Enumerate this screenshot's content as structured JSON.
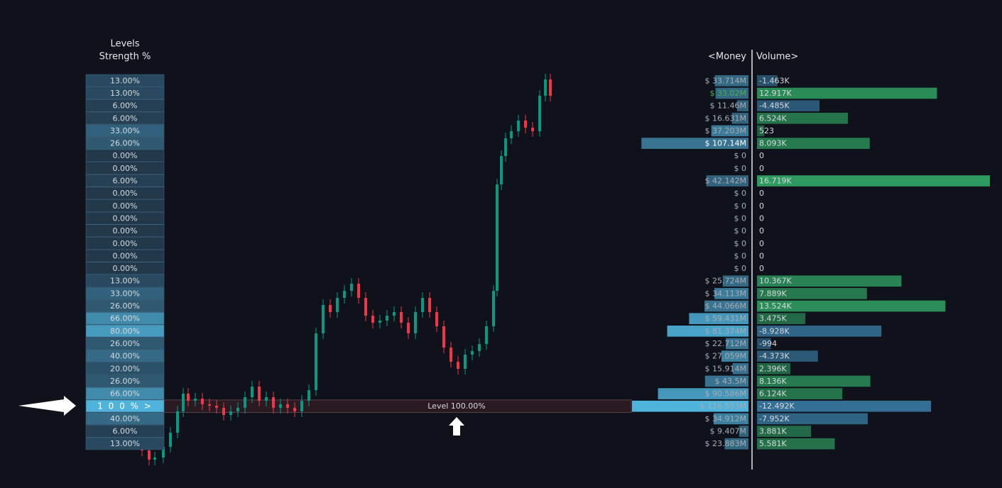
{
  "header": {
    "levels_title": "Levels",
    "strength_title": "Strength %",
    "money_title": "<Money",
    "volume_title": "Volume>"
  },
  "level": {
    "value": 100,
    "label": "Level 100.00%"
  },
  "colors": {
    "cell_low": "#22394c",
    "cell_high": "#4fb3dc",
    "positive": "#2e9a5f",
    "negative": "#3a7ca5",
    "money_text": "#a9adb4"
  },
  "rows": [
    {
      "strength": {
        "value": 13,
        "label": "13.00%"
      },
      "money": {
        "value": 33714000,
        "label": "$ 33.714M"
      },
      "volume": {
        "value": -1463,
        "label": "-1.463K"
      }
    },
    {
      "strength": {
        "value": 13,
        "label": "13.00%"
      },
      "money": {
        "value": 33020000,
        "label": "$ 33.02M"
      },
      "money_text_color": "#4caf50",
      "volume": {
        "value": 12917,
        "label": "12.917K"
      }
    },
    {
      "strength": {
        "value": 6,
        "label": "6.00%"
      },
      "money": {
        "value": 11460000,
        "label": "$ 11.46M"
      },
      "volume": {
        "value": -4485,
        "label": "-4.485K"
      }
    },
    {
      "strength": {
        "value": 6,
        "label": "6.00%"
      },
      "money": {
        "value": 16631000,
        "label": "$ 16.631M"
      },
      "volume": {
        "value": 6524,
        "label": "6.524K"
      }
    },
    {
      "strength": {
        "value": 33,
        "label": "33.00%"
      },
      "money": {
        "value": 37203000,
        "label": "$ 37.203M"
      },
      "volume": {
        "value": 523,
        "label": "523"
      }
    },
    {
      "strength": {
        "value": 26,
        "label": "26.00%"
      },
      "money": {
        "value": 107140000,
        "label": "$ 107.14M"
      },
      "money_text_color": "#ffffff",
      "volume": {
        "value": 8093,
        "label": "8.093K"
      }
    },
    {
      "strength": {
        "value": 0,
        "label": "0.00%"
      },
      "money": {
        "value": 0,
        "label": "$ 0"
      },
      "volume": {
        "value": 0,
        "label": "0"
      }
    },
    {
      "strength": {
        "value": 0,
        "label": "0.00%"
      },
      "money": {
        "value": 0,
        "label": "$ 0"
      },
      "volume": {
        "value": 0,
        "label": "0"
      }
    },
    {
      "strength": {
        "value": 6,
        "label": "6.00%"
      },
      "money": {
        "value": 42142000,
        "label": "$ 42.142M"
      },
      "volume": {
        "value": 16719,
        "label": "16.719K"
      }
    },
    {
      "strength": {
        "value": 0,
        "label": "0.00%"
      },
      "money": {
        "value": 0,
        "label": "$ 0"
      },
      "volume": {
        "value": 0,
        "label": "0"
      }
    },
    {
      "strength": {
        "value": 0,
        "label": "0.00%"
      },
      "money": {
        "value": 0,
        "label": "$ 0"
      },
      "volume": {
        "value": 0,
        "label": "0"
      }
    },
    {
      "strength": {
        "value": 0,
        "label": "0.00%"
      },
      "money": {
        "value": 0,
        "label": "$ 0"
      },
      "volume": {
        "value": 0,
        "label": "0"
      }
    },
    {
      "strength": {
        "value": 0,
        "label": "0.00%"
      },
      "money": {
        "value": 0,
        "label": "$ 0"
      },
      "volume": {
        "value": 0,
        "label": "0"
      }
    },
    {
      "strength": {
        "value": 0,
        "label": "0.00%"
      },
      "money": {
        "value": 0,
        "label": "$ 0"
      },
      "volume": {
        "value": 0,
        "label": "0"
      }
    },
    {
      "strength": {
        "value": 0,
        "label": "0.00%"
      },
      "money": {
        "value": 0,
        "label": "$ 0"
      },
      "volume": {
        "value": 0,
        "label": "0"
      }
    },
    {
      "strength": {
        "value": 0,
        "label": "0.00%"
      },
      "money": {
        "value": 0,
        "label": "$ 0"
      },
      "volume": {
        "value": 0,
        "label": "0"
      }
    },
    {
      "strength": {
        "value": 13,
        "label": "13.00%"
      },
      "money": {
        "value": 25724000,
        "label": "$ 25.724M"
      },
      "volume": {
        "value": 10367,
        "label": "10.367K"
      }
    },
    {
      "strength": {
        "value": 33,
        "label": "33.00%"
      },
      "money": {
        "value": 34113000,
        "label": "$ 34.113M"
      },
      "volume": {
        "value": 7889,
        "label": "7.889K"
      }
    },
    {
      "strength": {
        "value": 26,
        "label": "26.00%"
      },
      "money": {
        "value": 44066000,
        "label": "$ 44.066M"
      },
      "volume": {
        "value": 13524,
        "label": "13.524K"
      }
    },
    {
      "strength": {
        "value": 66,
        "label": "66.00%"
      },
      "money": {
        "value": 59431000,
        "label": "$ 59.431M"
      },
      "volume": {
        "value": 3475,
        "label": "3.475K"
      }
    },
    {
      "strength": {
        "value": 80,
        "label": "80.00%"
      },
      "money": {
        "value": 81374000,
        "label": "$ 81.374M"
      },
      "volume": {
        "value": -8928,
        "label": "-8.928K"
      }
    },
    {
      "strength": {
        "value": 26,
        "label": "26.00%"
      },
      "money": {
        "value": 22712000,
        "label": "$ 22.712M"
      },
      "volume": {
        "value": -994,
        "label": "-994"
      }
    },
    {
      "strength": {
        "value": 40,
        "label": "40.00%"
      },
      "money": {
        "value": 27059000,
        "label": "$ 27.059M"
      },
      "volume": {
        "value": -4373,
        "label": "-4.373K"
      }
    },
    {
      "strength": {
        "value": 20,
        "label": "20.00%"
      },
      "money": {
        "value": 15914000,
        "label": "$ 15.914M"
      },
      "volume": {
        "value": 2396,
        "label": "2.396K"
      }
    },
    {
      "strength": {
        "value": 26,
        "label": "26.00%"
      },
      "money": {
        "value": 43500000,
        "label": "$ 43.5M"
      },
      "volume": {
        "value": 8136,
        "label": "8.136K"
      }
    },
    {
      "strength": {
        "value": 66,
        "label": "66.00%"
      },
      "money": {
        "value": 90586000,
        "label": "$ 90.586M"
      },
      "volume": {
        "value": 6124,
        "label": "6.124K"
      }
    },
    {
      "strength": {
        "value": 100,
        "label": "1 0 0 % >"
      },
      "money": {
        "value": 116553000,
        "label": "$ 116.553M"
      },
      "volume": {
        "value": -12492,
        "label": "-12.492K"
      }
    },
    {
      "strength": {
        "value": 40,
        "label": "40.00%"
      },
      "money": {
        "value": 34912000,
        "label": "$ 34.912M"
      },
      "volume": {
        "value": -7952,
        "label": "-7.952K"
      }
    },
    {
      "strength": {
        "value": 6,
        "label": "6.00%"
      },
      "money": {
        "value": 9407000,
        "label": "$ 9.407M"
      },
      "volume": {
        "value": 3881,
        "label": "3.881K"
      }
    },
    {
      "strength": {
        "value": 13,
        "label": "13.00%"
      },
      "money": {
        "value": 23883000,
        "label": "$ 23.883M"
      },
      "volume": {
        "value": 5581,
        "label": "5.581K"
      }
    }
  ]
}
